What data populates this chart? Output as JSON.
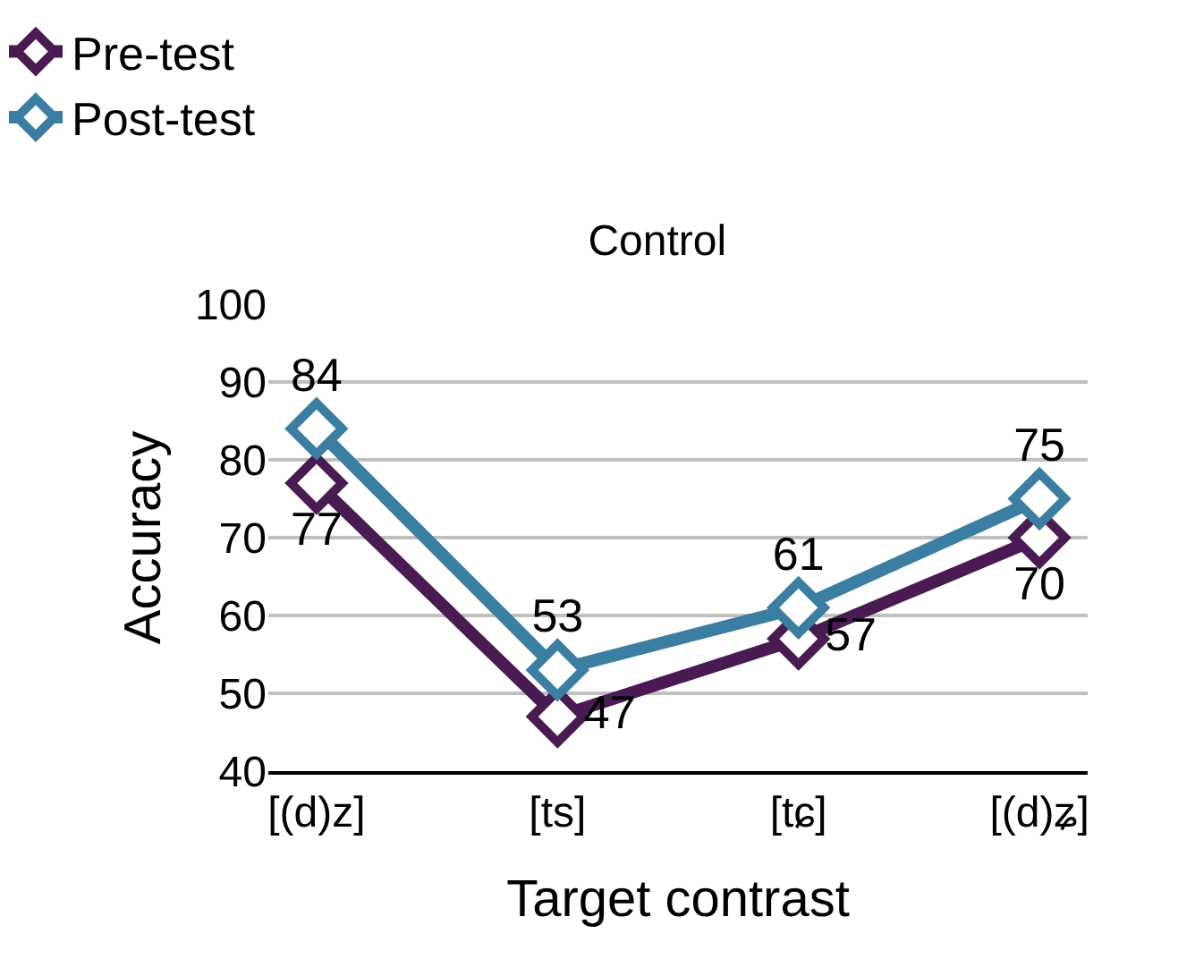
{
  "chart_data": {
    "type": "line",
    "title": "Control",
    "xlabel": "Target contrast",
    "ylabel": "Accuracy",
    "categories": [
      "[(d)z]",
      "[ts]",
      "[tɕ]",
      "[(d)ʑ]"
    ],
    "series": [
      {
        "name": "Pre-test",
        "color": "#4a1a52",
        "values": [
          77,
          47,
          57,
          70
        ]
      },
      {
        "name": "Post-test",
        "color": "#3a7ea1",
        "values": [
          84,
          53,
          61,
          75
        ]
      }
    ],
    "ylim": [
      40,
      100
    ],
    "yticks": [
      40,
      50,
      60,
      70,
      80,
      90,
      100
    ],
    "grid": "y",
    "legend": "top",
    "marker": "diamond",
    "line_style": "solid",
    "data_labels": true
  }
}
